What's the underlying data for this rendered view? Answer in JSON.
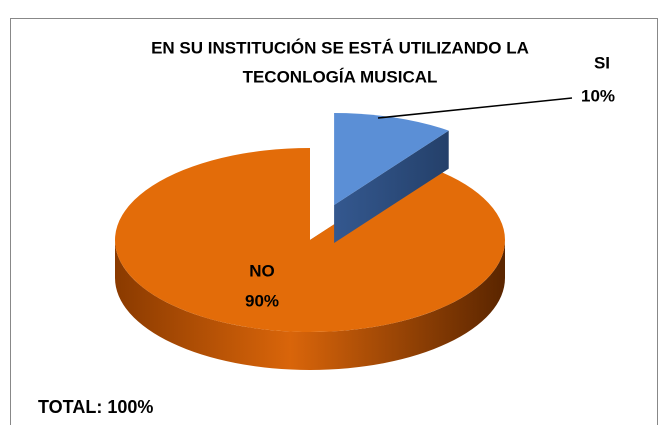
{
  "chart_data": {
    "type": "pie3d",
    "title_lines": [
      "EN SU INSTITUCIÓN SE ESTÁ UTILIZANDO LA",
      "TECONLOGÍA MUSICAL"
    ],
    "categories": [
      "SI",
      "NO"
    ],
    "values": [
      10,
      90
    ],
    "value_labels": [
      "10%",
      "90%"
    ],
    "colors": [
      "#5b8fd6",
      "#e36c09"
    ],
    "exploded": [
      true,
      false
    ],
    "annotation": "TOTAL: 100%"
  }
}
